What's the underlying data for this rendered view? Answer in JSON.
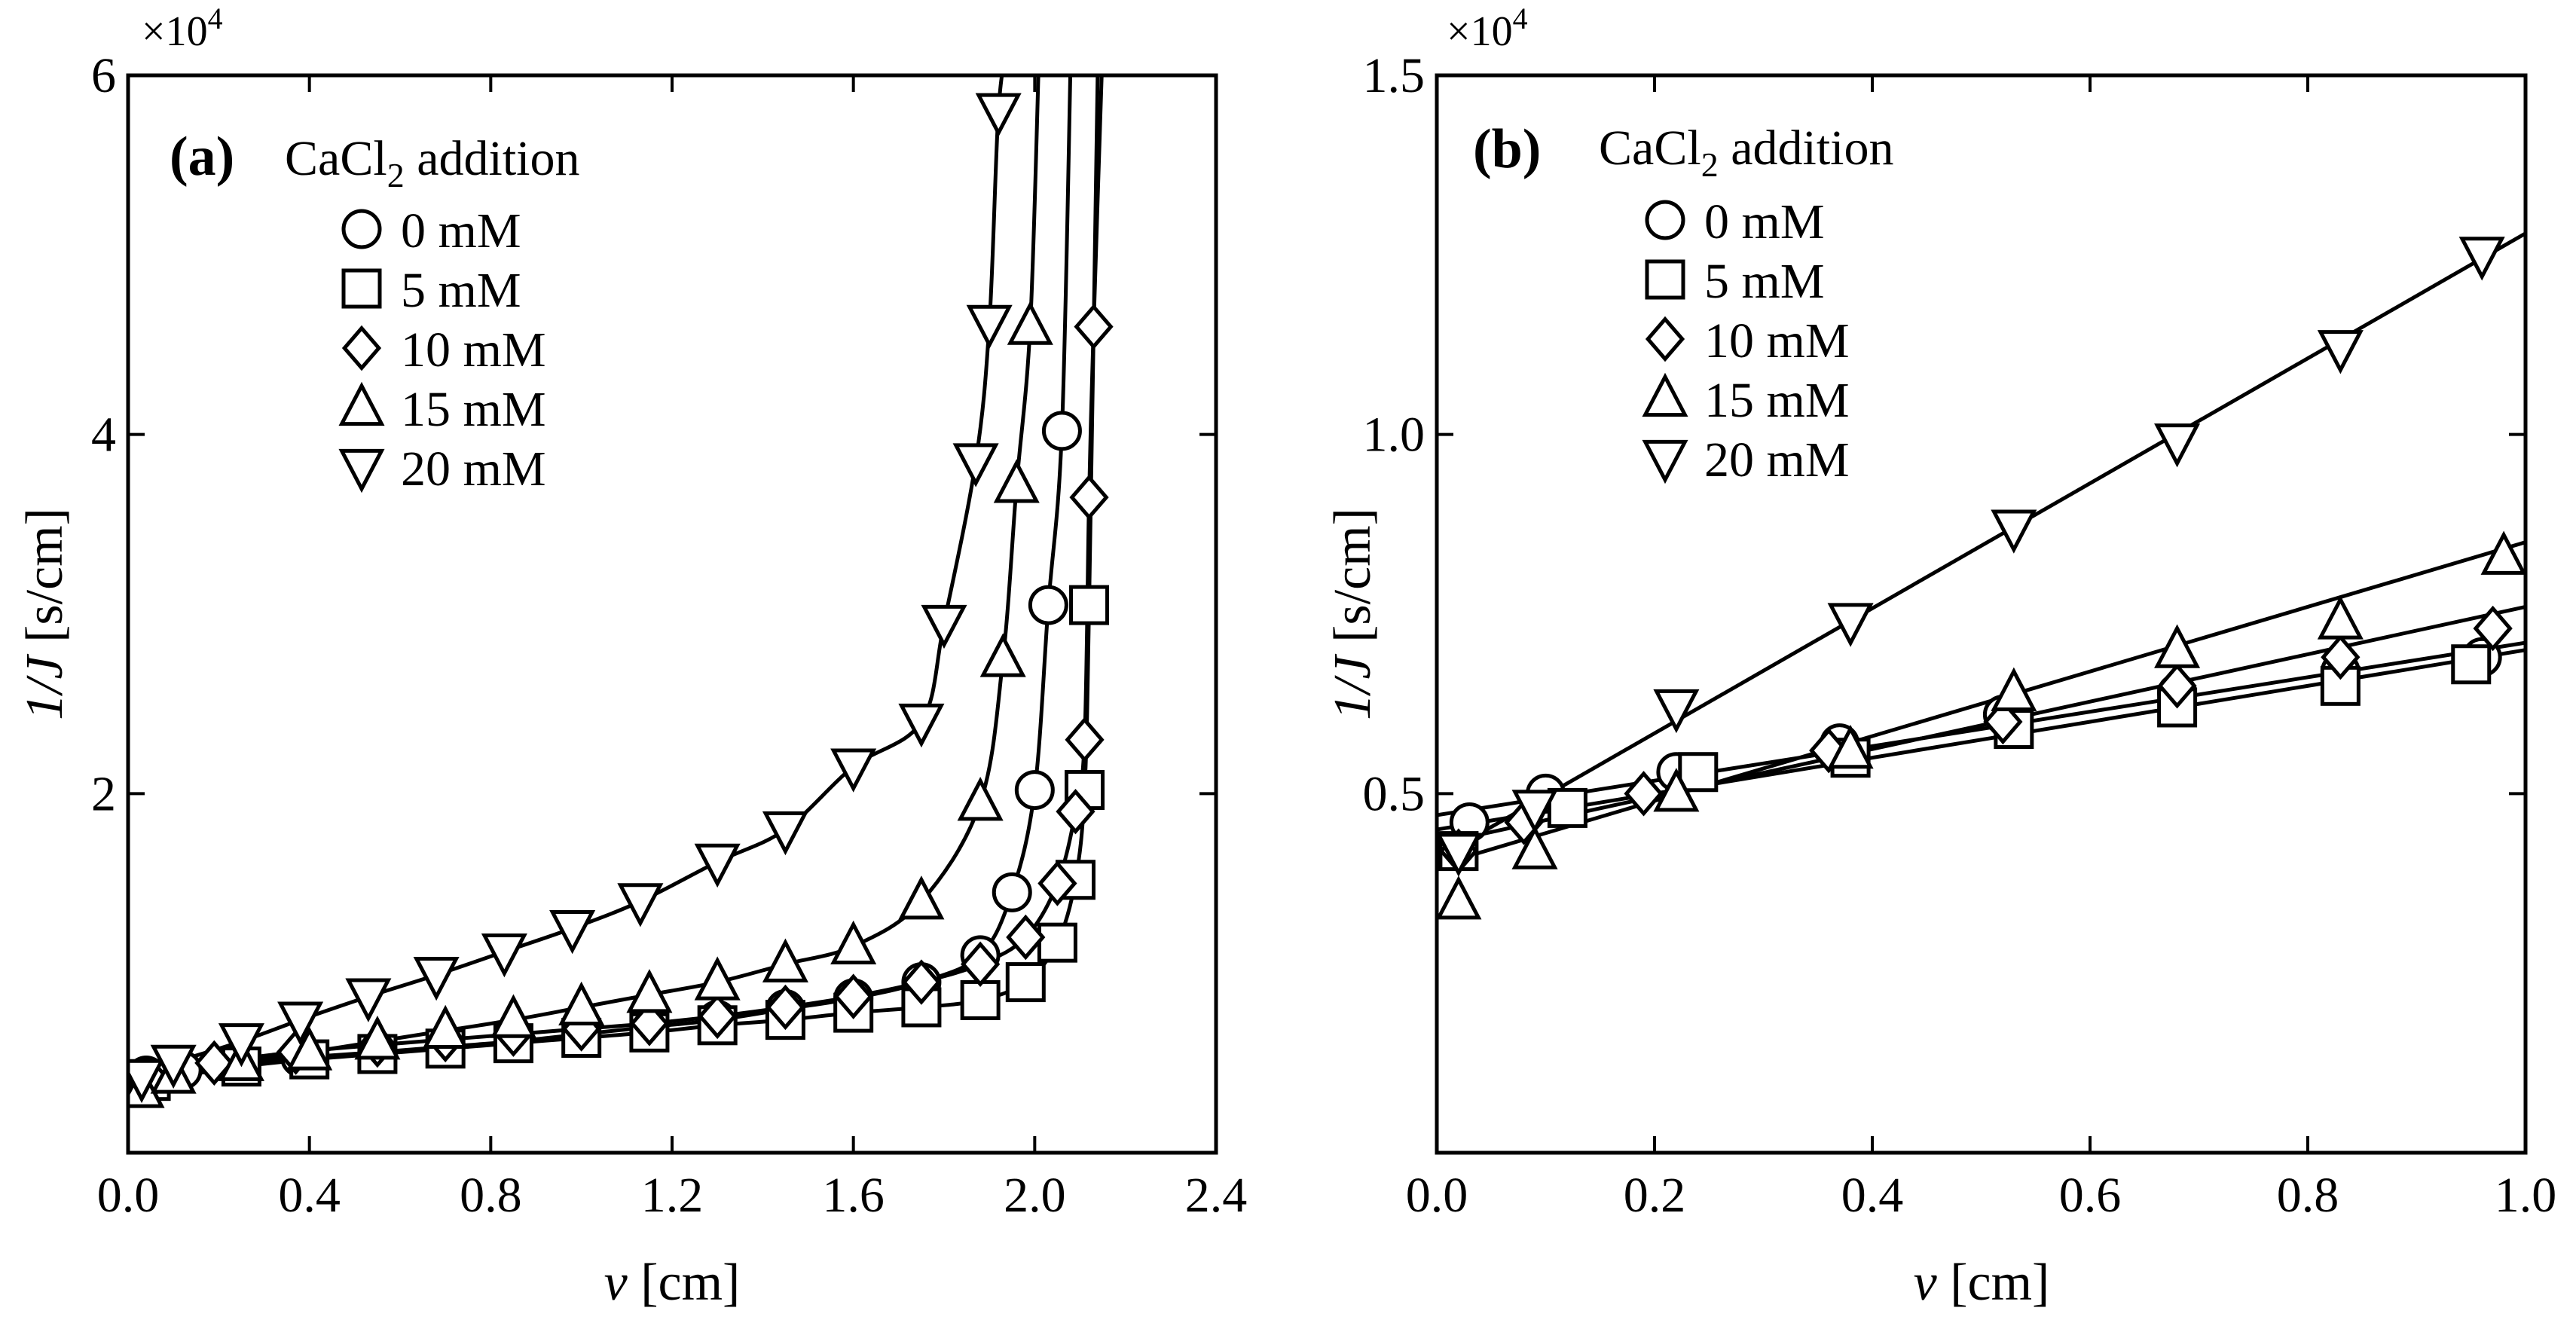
{
  "chart_data": [
    {
      "type": "scatter",
      "panel": "(a)",
      "legend_title_main": "CaCl",
      "legend_title_sub": "2",
      "legend_title_rest": " addition",
      "legend_placement": "top-left",
      "multiplier_prefix": "×10",
      "multiplier_exp": "4",
      "xlabel_var": "v",
      "xlabel_unit": " [cm]",
      "ylabel_var": "1/J",
      "ylabel_unit": " [s/cm]",
      "xlim": [
        0,
        2.4
      ],
      "ylim": [
        0,
        6
      ],
      "xticks": [
        0,
        0.4,
        0.8,
        1.2,
        1.6,
        2.0,
        2.4
      ],
      "xtick_labels": [
        "0.0",
        "0.4",
        "0.8",
        "1.2",
        "1.6",
        "2.0",
        "2.4"
      ],
      "yticks": [
        2,
        4,
        6
      ],
      "ytick_labels": [
        "2",
        "4",
        "6"
      ],
      "series": [
        {
          "name": "0 mM",
          "marker": "circle",
          "x": [
            0.04,
            0.12,
            0.24,
            0.38,
            0.55,
            0.7,
            0.85,
            1.0,
            1.15,
            1.3,
            1.45,
            1.6,
            1.75,
            1.88,
            1.95,
            2.0,
            2.03,
            2.06
          ],
          "y": [
            0.43,
            0.46,
            0.5,
            0.53,
            0.56,
            0.59,
            0.62,
            0.66,
            0.7,
            0.74,
            0.8,
            0.86,
            0.95,
            1.1,
            1.45,
            2.02,
            3.05,
            4.02
          ]
        },
        {
          "name": "5 mM",
          "marker": "square",
          "x": [
            0.05,
            0.25,
            0.4,
            0.55,
            0.7,
            0.85,
            1.0,
            1.15,
            1.3,
            1.45,
            1.6,
            1.75,
            1.88,
            1.98,
            2.05,
            2.09,
            2.11,
            2.12
          ],
          "y": [
            0.4,
            0.48,
            0.52,
            0.55,
            0.58,
            0.61,
            0.64,
            0.67,
            0.71,
            0.74,
            0.78,
            0.81,
            0.85,
            0.95,
            1.17,
            1.52,
            2.02,
            3.05
          ]
        },
        {
          "name": "10 mM",
          "marker": "diamond",
          "x": [
            0.05,
            0.19,
            0.37,
            0.55,
            0.7,
            0.85,
            1.0,
            1.15,
            1.3,
            1.45,
            1.6,
            1.75,
            1.88,
            1.98,
            2.05,
            2.09,
            2.11,
            2.12,
            2.13
          ],
          "y": [
            0.41,
            0.5,
            0.56,
            0.6,
            0.63,
            0.66,
            0.69,
            0.72,
            0.76,
            0.81,
            0.87,
            0.95,
            1.05,
            1.2,
            1.5,
            1.9,
            2.3,
            3.65,
            4.6
          ]
        },
        {
          "name": "15 mM",
          "marker": "triangle-up",
          "x": [
            0.03,
            0.1,
            0.25,
            0.4,
            0.55,
            0.7,
            0.85,
            1.0,
            1.15,
            1.3,
            1.45,
            1.6,
            1.75,
            1.88,
            1.93,
            1.96,
            1.99
          ],
          "y": [
            0.35,
            0.43,
            0.5,
            0.56,
            0.62,
            0.68,
            0.74,
            0.81,
            0.88,
            0.95,
            1.05,
            1.15,
            1.4,
            1.95,
            2.75,
            3.72,
            4.6
          ]
        },
        {
          "name": "20 mM",
          "marker": "triangle-down",
          "x": [
            0.03,
            0.1,
            0.25,
            0.38,
            0.53,
            0.68,
            0.83,
            0.98,
            1.13,
            1.3,
            1.45,
            1.6,
            1.75,
            1.8,
            1.87,
            1.9,
            1.92
          ],
          "y": [
            0.42,
            0.5,
            0.62,
            0.74,
            0.87,
            0.99,
            1.12,
            1.25,
            1.4,
            1.62,
            1.8,
            2.15,
            2.4,
            2.95,
            3.85,
            4.62,
            5.8
          ]
        }
      ]
    },
    {
      "type": "scatter",
      "panel": "(b)",
      "legend_title_main": "CaCl",
      "legend_title_sub": "2",
      "legend_title_rest": " addition",
      "legend_placement": "top-left",
      "multiplier_prefix": "×10",
      "multiplier_exp": "4",
      "xlabel_var": "v",
      "xlabel_unit": " [cm]",
      "ylabel_var": "1/J",
      "ylabel_unit": " [s/cm]",
      "xlim": [
        0,
        1.0
      ],
      "ylim": [
        0,
        1.5
      ],
      "xticks": [
        0,
        0.2,
        0.4,
        0.6,
        0.8,
        1.0
      ],
      "xtick_labels": [
        "0.0",
        "0.2",
        "0.4",
        "0.6",
        "0.8",
        "1.0"
      ],
      "yticks": [
        0.5,
        1.0,
        1.5
      ],
      "ytick_labels": [
        "0.5",
        "1.0",
        "1.5"
      ],
      "series": [
        {
          "name": "0 mM",
          "marker": "circle",
          "x": [
            0.03,
            0.1,
            0.22,
            0.37,
            0.52,
            0.68,
            0.83,
            0.96
          ],
          "y": [
            0.46,
            0.5,
            0.53,
            0.57,
            0.61,
            0.64,
            0.67,
            0.69
          ],
          "fit_x": [
            0.0,
            1.0
          ],
          "fit_y": [
            0.47,
            0.71
          ]
        },
        {
          "name": "5 mM",
          "marker": "square",
          "x": [
            0.02,
            0.12,
            0.24,
            0.38,
            0.53,
            0.68,
            0.83,
            0.95
          ],
          "y": [
            0.42,
            0.48,
            0.53,
            0.55,
            0.59,
            0.62,
            0.65,
            0.68
          ],
          "fit_x": [
            0.0,
            1.0
          ],
          "fit_y": [
            0.45,
            0.7
          ]
        },
        {
          "name": "10 mM",
          "marker": "diamond",
          "x": [
            0.02,
            0.08,
            0.19,
            0.36,
            0.52,
            0.68,
            0.83,
            0.97
          ],
          "y": [
            0.42,
            0.46,
            0.5,
            0.56,
            0.6,
            0.65,
            0.69,
            0.73
          ],
          "fit_x": [
            0.0,
            1.0
          ],
          "fit_y": [
            0.43,
            0.76
          ]
        },
        {
          "name": "15 mM",
          "marker": "triangle-up",
          "x": [
            0.02,
            0.09,
            0.22,
            0.38,
            0.53,
            0.68,
            0.83,
            0.98
          ],
          "y": [
            0.35,
            0.42,
            0.5,
            0.56,
            0.64,
            0.7,
            0.74,
            0.83
          ],
          "fit_x": [
            0.0,
            1.0
          ],
          "fit_y": [
            0.4,
            0.85
          ]
        },
        {
          "name": "20 mM",
          "marker": "triangle-down",
          "x": [
            0.02,
            0.09,
            0.22,
            0.38,
            0.53,
            0.68,
            0.83,
            0.96
          ],
          "y": [
            0.42,
            0.48,
            0.62,
            0.74,
            0.87,
            0.99,
            1.12,
            1.25
          ],
          "fit_x": [
            0.0,
            1.0
          ],
          "fit_y": [
            0.41,
            1.28
          ]
        }
      ]
    }
  ]
}
